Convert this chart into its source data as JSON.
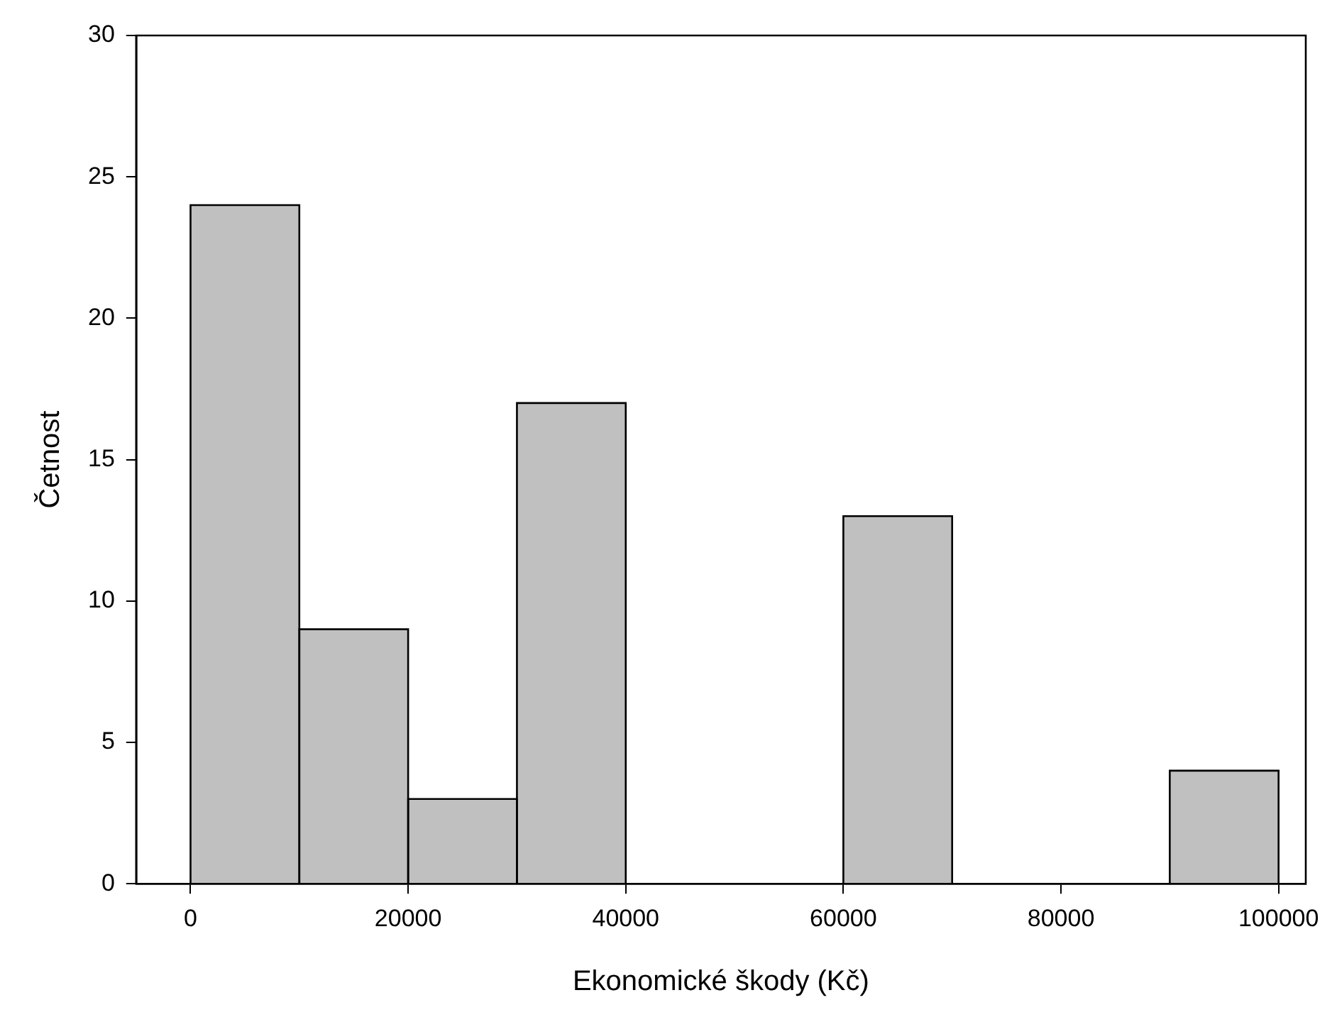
{
  "chart_data": {
    "type": "histogram",
    "xlabel": "Ekonomické škody (Kč)",
    "ylabel": "Četnost",
    "bins": [
      0,
      10000,
      20000,
      30000,
      40000,
      50000,
      60000,
      70000,
      80000,
      90000,
      100000
    ],
    "values": [
      24,
      9,
      3,
      17,
      0,
      0,
      13,
      0,
      0,
      4
    ],
    "color": "#c0c0c0",
    "xlim": [
      -5000,
      102500
    ],
    "xticks": [
      0,
      20000,
      40000,
      60000,
      80000,
      100000
    ],
    "ylim": [
      0,
      30
    ],
    "yticks": [
      0,
      5,
      10,
      15,
      20,
      25,
      30
    ],
    "grid": false,
    "legend": false
  }
}
